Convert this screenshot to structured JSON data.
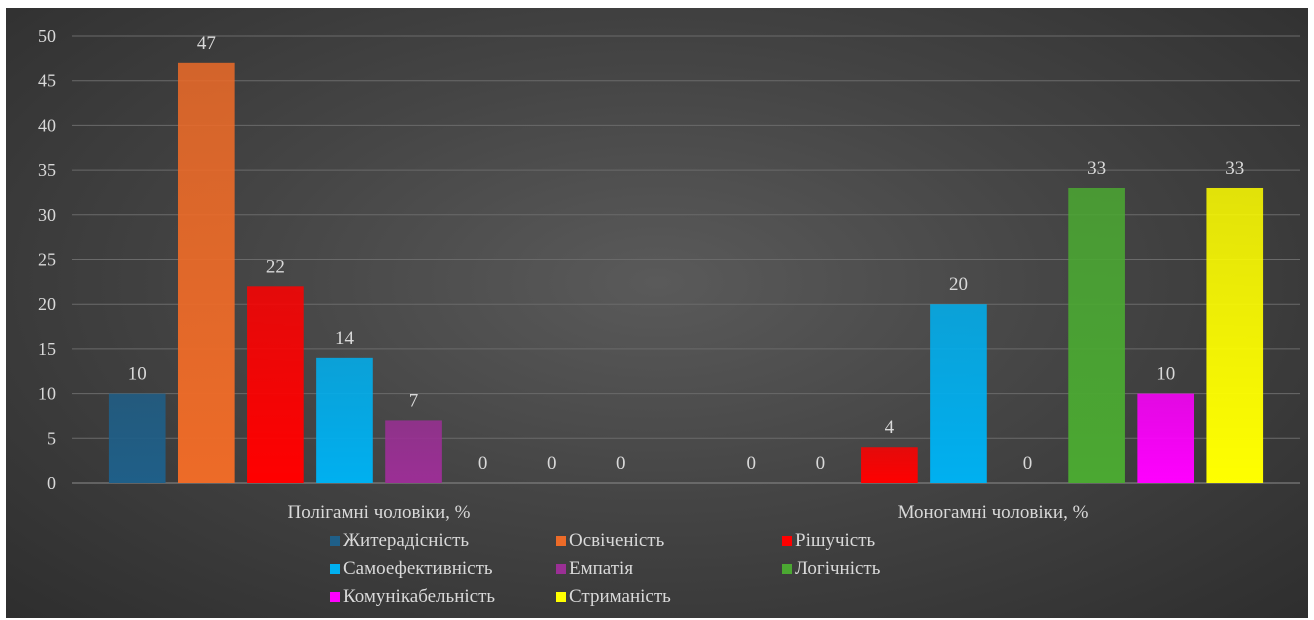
{
  "chart_data": {
    "type": "bar",
    "categories": [
      "Полігамні чоловіки, %",
      "Моногамні чоловіки, %"
    ],
    "series": [
      {
        "name": "Житерадісність",
        "values": [
          10,
          0
        ],
        "color": "#1f5f88"
      },
      {
        "name": "Освіченість",
        "values": [
          47,
          0
        ],
        "color": "#ed6b28"
      },
      {
        "name": "Рішучість",
        "values": [
          22,
          4
        ],
        "color": "#ff0000"
      },
      {
        "name": "Самоефективність",
        "values": [
          14,
          20
        ],
        "color": "#00b0f0"
      },
      {
        "name": "Емпатія",
        "values": [
          7,
          0
        ],
        "color": "#9b2f95"
      },
      {
        "name": "Логічність",
        "values": [
          0,
          33
        ],
        "color": "#4ba832"
      },
      {
        "name": "Комунікабельність",
        "values": [
          0,
          10
        ],
        "color": "#ff00ff"
      },
      {
        "name": "Стриманість",
        "values": [
          0,
          33
        ],
        "color": "#ffff00"
      }
    ],
    "ylim": [
      0,
      50
    ],
    "yticks": [
      "0",
      "5",
      "10",
      "15",
      "20",
      "25",
      "30",
      "35",
      "40",
      "45",
      "50"
    ],
    "grid": true,
    "data_labels": true,
    "legend_position": "bottom"
  }
}
